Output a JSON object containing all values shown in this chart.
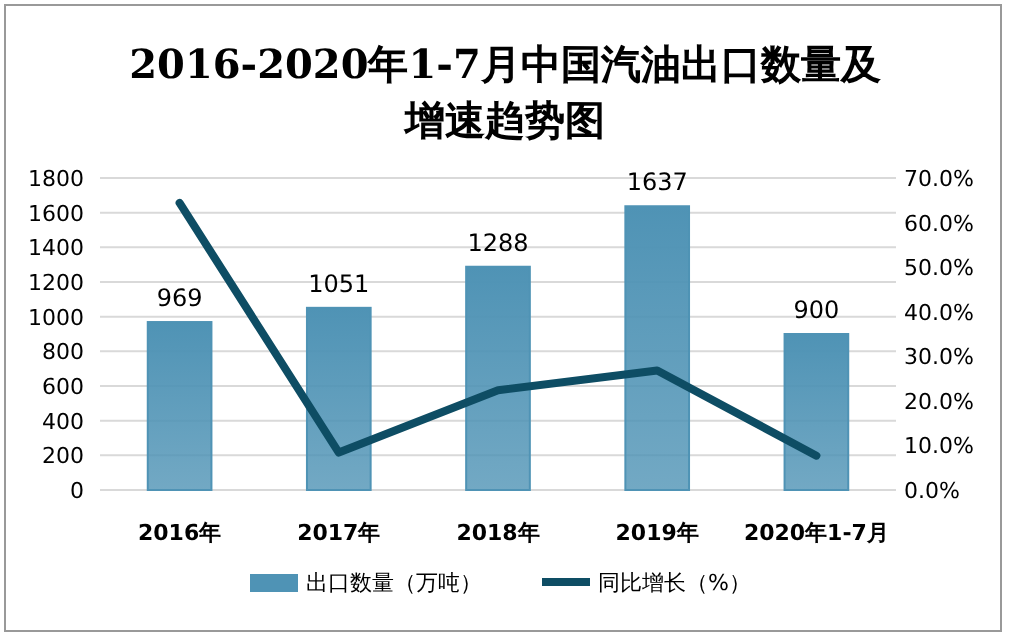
{
  "chart_data": {
    "type": "bar",
    "title": "2016-2020年1-7月中国汽油出口数量及增速趋势图",
    "categories": [
      "2016年",
      "2017年",
      "2018年",
      "2019年",
      "2020年1-7月"
    ],
    "series": [
      {
        "name": "出口数量（万吨）",
        "color": "#4f93b5",
        "values": [
          969,
          1051,
          1288,
          1637,
          900
        ],
        "value_labels": [
          "969",
          "1051",
          "1288",
          "1637",
          "900"
        ]
      },
      {
        "name": "同比增长（%）",
        "type": "line",
        "axis": "y2",
        "color": "#0e4d64",
        "values": [
          64.4,
          8.4,
          22.4,
          26.8,
          7.7
        ]
      }
    ],
    "ylim": [
      0,
      1800
    ],
    "yticks": [
      0,
      200,
      400,
      600,
      800,
      1000,
      1200,
      1400,
      1600,
      1800
    ],
    "y2lim": [
      0,
      70
    ],
    "y2ticks": [
      {
        "value": 0,
        "label": "0.0%"
      },
      {
        "value": 10,
        "label": "10.0%"
      },
      {
        "value": 20,
        "label": "20.0%"
      },
      {
        "value": 30,
        "label": "30.0%"
      },
      {
        "value": 40,
        "label": "40.0%"
      },
      {
        "value": 50,
        "label": "50.0%"
      },
      {
        "value": 60,
        "label": "60.0%"
      },
      {
        "value": 70,
        "label": "70.0%"
      }
    ],
    "grid": "y",
    "legend": "bottom"
  }
}
